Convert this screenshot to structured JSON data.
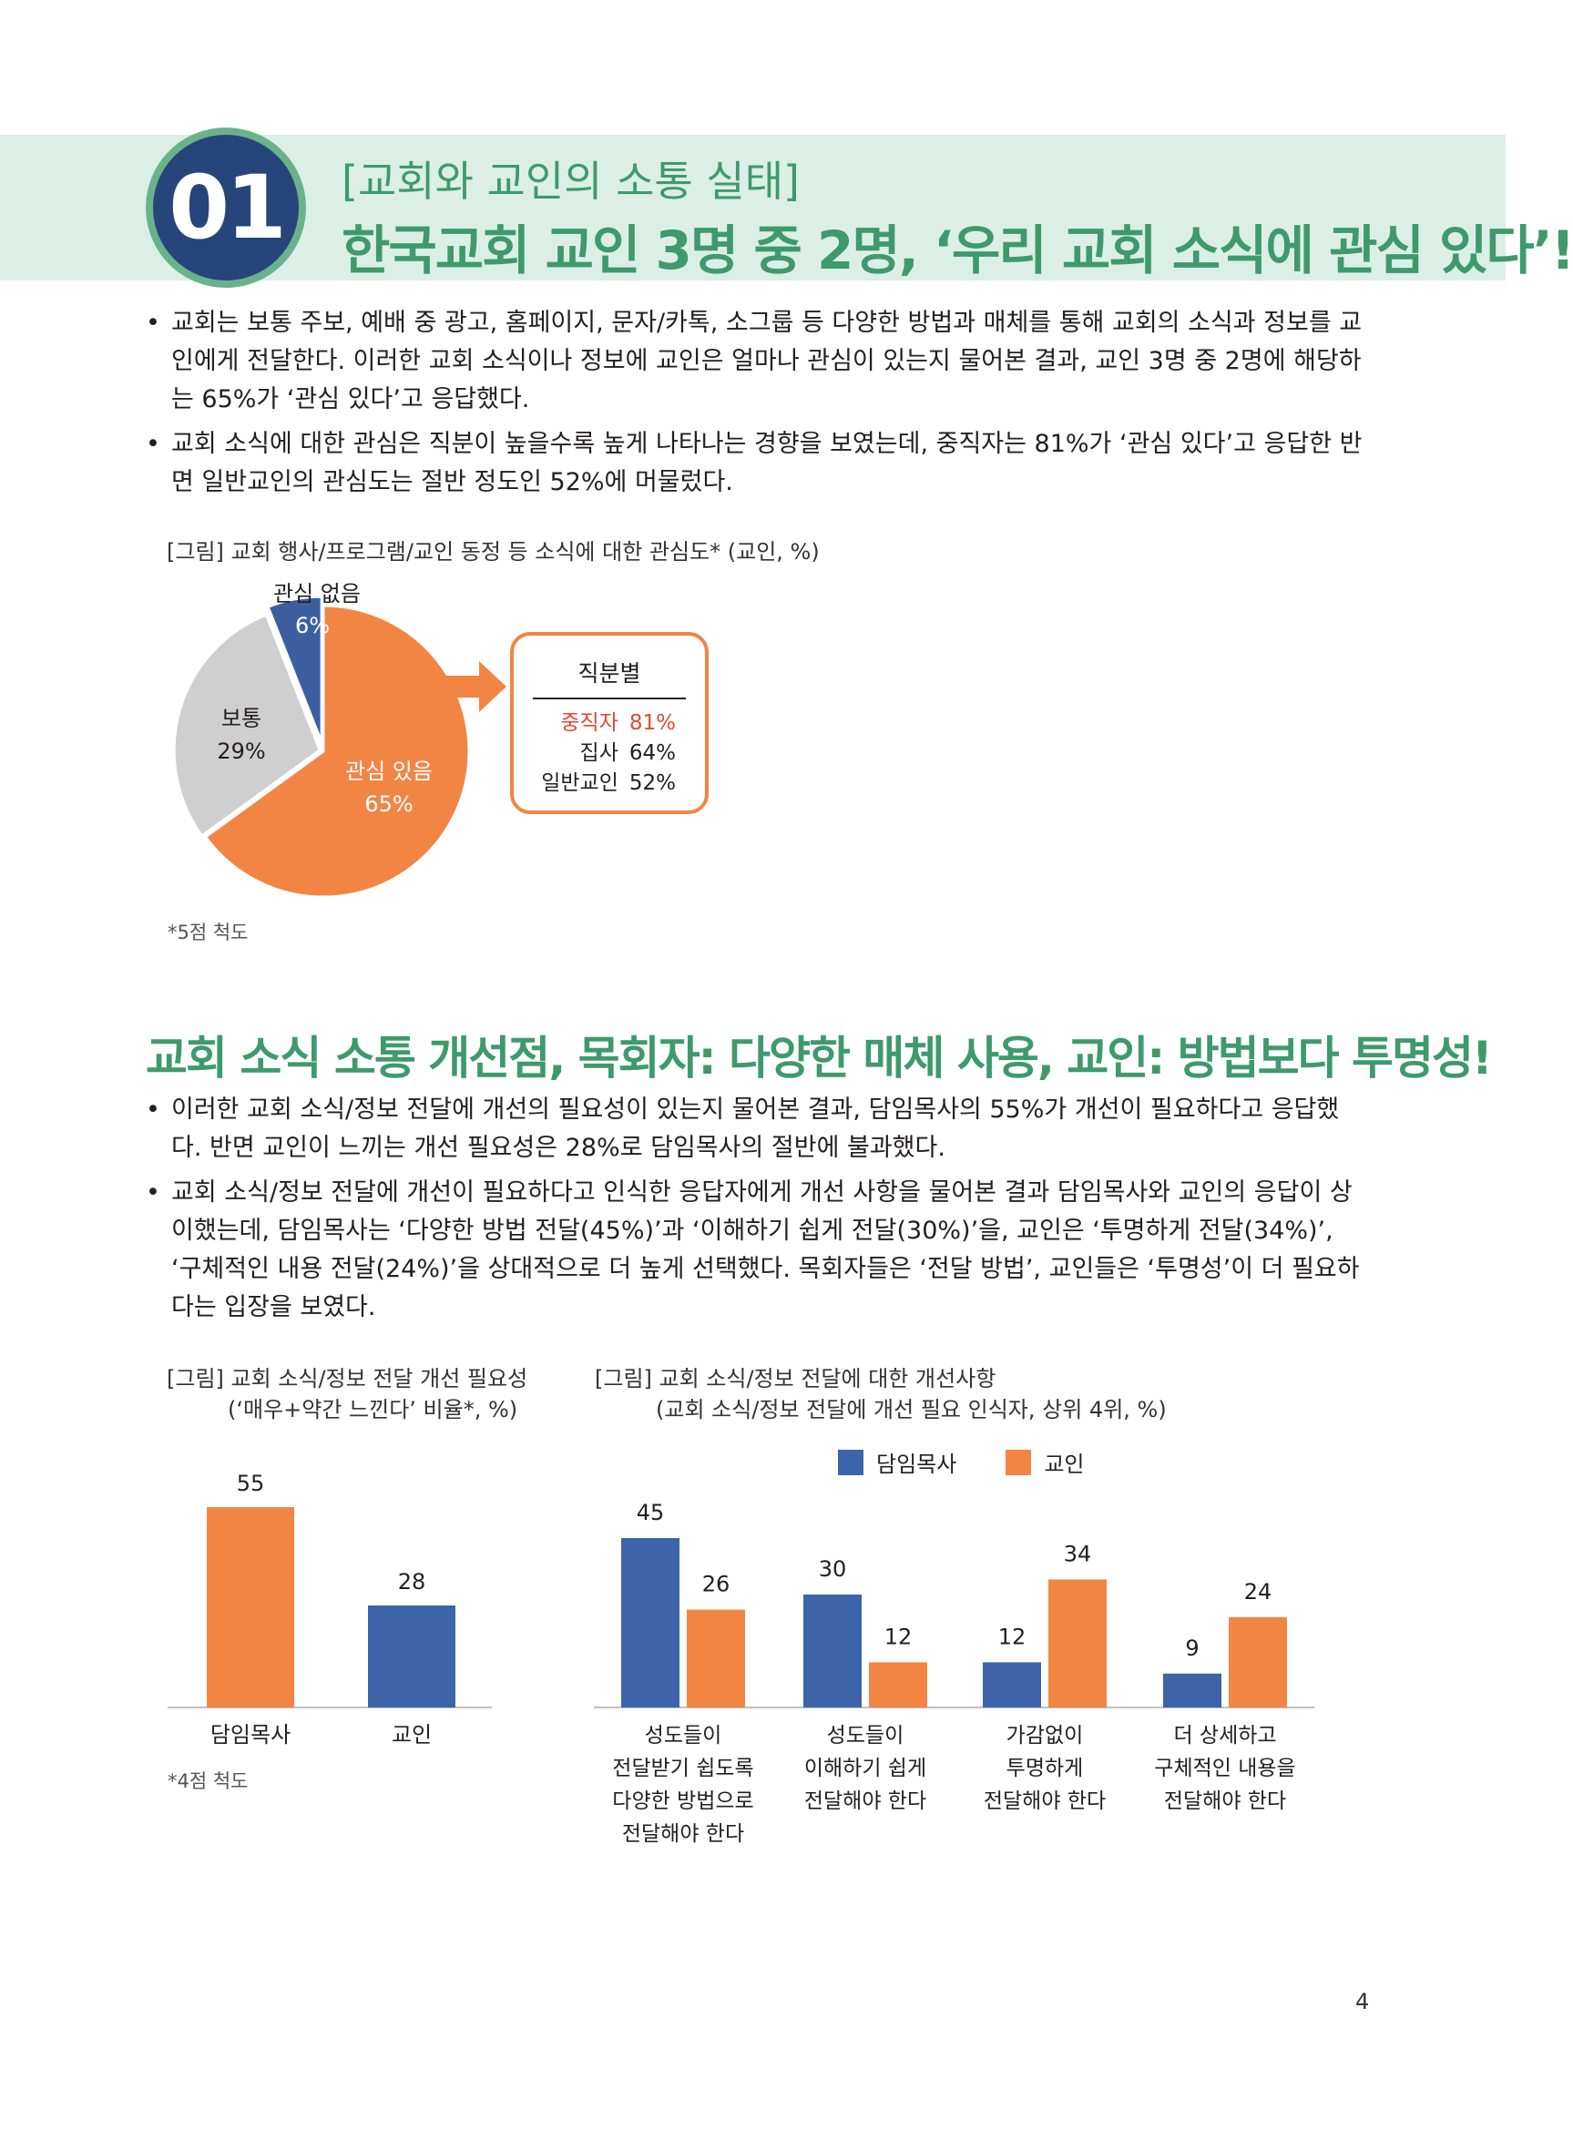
{
  "section": {
    "number": "01",
    "kicker": "[교회와 교인의 소통 실태]",
    "headline": "한국교회 교인 3명 중 2명, ‘우리 교회 소식에 관심 있다’!"
  },
  "bullets1": [
    "교회는 보통 주보, 예배 중 광고, 홈페이지, 문자/카톡, 소그룹 등 다양한 방법과 매체를 통해 교회의 소식과 정보를 교인에게 전달한다. 이러한 교회 소식이나 정보에 교인은 얼마나 관심이 있는지 물어본 결과, 교인 3명 중 2명에 해당하는 65%가 ‘관심 있다’고 응답했다.",
    "교회 소식에 대한 관심은 직분이 높을수록 높게 나타나는 경향을 보였는데, 중직자는 81%가 ‘관심 있다’고 응답한 반면 일반교인의 관심도는 절반 정도인 52%에 머물렀다."
  ],
  "fig1": {
    "caption": "[그림] 교회 행사/프로그램/교인 동정 등 소식에 대한 관심도* (교인, %)",
    "note": "*5점 척도",
    "box_title": "직분별",
    "box_rows": [
      {
        "label": "중직자",
        "value": "81%",
        "color": "#e04a2f"
      },
      {
        "label": "집사",
        "value": "64%",
        "color": "#231f20"
      },
      {
        "label": "일반교인",
        "value": "52%",
        "color": "#231f20"
      }
    ]
  },
  "heading2": "교회 소식 소통 개선점, 목회자: 다양한 매체 사용, 교인: 방법보다 투명성!",
  "bullets2": [
    "이러한 교회 소식/정보 전달에 개선의 필요성이 있는지 물어본 결과, 담임목사의 55%가 개선이 필요하다고 응답했다. 반면 교인이 느끼는 개선 필요성은 28%로 담임목사의 절반에 불과했다.",
    "교회 소식/정보 전달에 개선이 필요하다고 인식한 응답자에게 개선 사항을 물어본 결과 담임목사와 교인의 응답이 상이했는데, 담임목사는 ‘다양한 방법 전달(45%)’과 ‘이해하기 쉽게 전달(30%)’을, 교인은 ‘투명하게 전달(34%)’, ‘구체적인 내용 전달(24%)’을 상대적으로 더 높게 선택했다. 목회자들은 ‘전달 방법’, 교인들은 ‘투명성’이 더 필요하다는 입장을 보였다."
  ],
  "fig2": {
    "caption1": "[그림] 교회 소식/정보 전달 개선 필요성",
    "caption2": "(‘매우+약간 느낀다’ 비율*, %)",
    "note": "*4점 척도"
  },
  "fig3": {
    "caption1": "[그림] 교회 소식/정보 전달에 대한 개선사항",
    "caption2": "(교회 소식/정보 전달에 개선 필요 인식자, 상위 4위, %)"
  },
  "page_number": "4",
  "chart_data": [
    {
      "type": "pie",
      "labels": [
        "관심 있음",
        "보통",
        "관심 없음"
      ],
      "values": [
        65,
        29,
        6
      ],
      "value_labels": [
        "65%",
        "29%",
        "6%"
      ],
      "colors": [
        "#f28544",
        "#d0cfcf",
        "#3d5fa0"
      ]
    },
    {
      "type": "bar",
      "categories": [
        "담임목사",
        "교인"
      ],
      "values": [
        55,
        28
      ],
      "colors": [
        "#f28544",
        "#3d64a8"
      ],
      "ylim": [
        0,
        60
      ]
    },
    {
      "type": "bar",
      "categories": [
        [
          "성도들이",
          "전달받기 쉽도록",
          "다양한 방법으로",
          "전달해야 한다"
        ],
        [
          "성도들이",
          "이해하기 쉽게",
          "전달해야 한다"
        ],
        [
          "가감없이",
          "투명하게",
          "전달해야 한다"
        ],
        [
          "더 상세하고",
          "구체적인 내용을",
          "전달해야 한다"
        ]
      ],
      "series": [
        {
          "name": "담임목사",
          "values": [
            45,
            30,
            12,
            9
          ],
          "color": "#3d64a8"
        },
        {
          "name": "교인",
          "values": [
            26,
            12,
            34,
            24
          ],
          "color": "#f28544"
        }
      ],
      "ylim": [
        0,
        50
      ],
      "legend": "top"
    }
  ]
}
